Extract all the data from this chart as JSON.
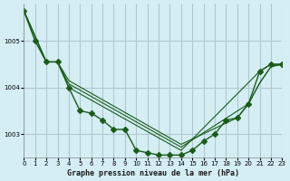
{
  "background_color": "#d4eef4",
  "grid_color": "#b0c8d0",
  "line_color": "#1a5c1a",
  "title": "Graphe pression niveau de la mer (hPa)",
  "xlim": [
    0,
    23
  ],
  "ylim": [
    1002.5,
    1005.8
  ],
  "yticks": [
    1003,
    1004,
    1005
  ],
  "xticks": [
    0,
    1,
    2,
    3,
    4,
    5,
    6,
    7,
    8,
    9,
    10,
    11,
    12,
    13,
    14,
    15,
    16,
    17,
    18,
    19,
    20,
    21,
    22,
    23
  ],
  "series": [
    {
      "x": [
        0,
        1,
        2,
        3,
        4,
        5,
        6,
        7,
        8,
        9,
        10,
        11,
        12,
        13,
        14,
        15,
        16,
        17,
        18,
        19,
        20,
        21,
        22,
        23
      ],
      "y": [
        1005.65,
        1005.0,
        1004.55,
        1004.55,
        1004.0,
        1003.5,
        1003.45,
        1003.3,
        1003.1,
        1003.1,
        1002.65,
        1002.6,
        1002.55,
        1002.55,
        1002.55,
        1002.65,
        1002.85,
        1003.0,
        1003.3,
        1003.35,
        1003.65,
        1004.35,
        1004.5,
        1004.5
      ],
      "marker": "D",
      "markersize": 3,
      "linewidth": 1.0
    },
    {
      "x": [
        0,
        2,
        3,
        4,
        14,
        21,
        22,
        23
      ],
      "y": [
        1005.65,
        1004.55,
        1004.55,
        1004.0,
        1002.65,
        1004.35,
        1004.5,
        1004.5
      ],
      "marker": null,
      "markersize": 0,
      "linewidth": 0.8
    },
    {
      "x": [
        0,
        2,
        3,
        4,
        14,
        20,
        21,
        22,
        23
      ],
      "y": [
        1005.65,
        1004.55,
        1004.55,
        1004.08,
        1002.72,
        1003.65,
        1004.1,
        1004.45,
        1004.5
      ],
      "marker": null,
      "markersize": 0,
      "linewidth": 0.8
    },
    {
      "x": [
        0,
        2,
        3,
        4,
        14,
        19,
        20,
        21,
        22,
        23
      ],
      "y": [
        1005.65,
        1004.55,
        1004.55,
        1004.15,
        1002.78,
        1003.35,
        1003.65,
        1004.1,
        1004.45,
        1004.5
      ],
      "marker": null,
      "markersize": 0,
      "linewidth": 0.8
    }
  ]
}
